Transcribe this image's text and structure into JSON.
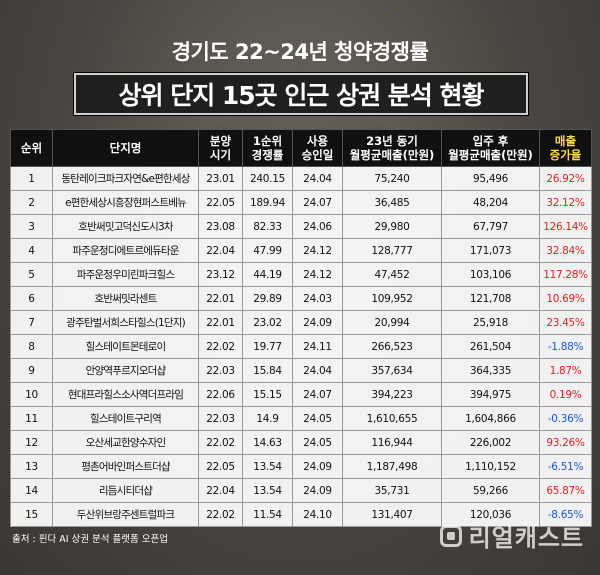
{
  "subtitle": "경기도 22~24년 청약경쟁률",
  "title": "상위 단지 15곳 인근 상권 분석 현황",
  "table": {
    "headers": [
      [
        "순위"
      ],
      [
        "단지명"
      ],
      [
        "분양",
        "시기"
      ],
      [
        "1순위",
        "경쟁률"
      ],
      [
        "사용",
        "승인일"
      ],
      [
        "23년 동기",
        "월평균매출(만원)"
      ],
      [
        "입주 후",
        "월평균매출(만원)"
      ],
      [
        "매출",
        "증가율"
      ]
    ],
    "rows": [
      {
        "rank": "1",
        "name": "동탄레이크파크자연&e편한세상",
        "sale": "23.01",
        "ratio": "240.15",
        "approval": "24.04",
        "sales23": "75,240",
        "sales_after": "95,496",
        "growth": "26.92%",
        "dir": "pos"
      },
      {
        "rank": "2",
        "name": "e편한세상시흥장현퍼스트베뉴",
        "sale": "22.05",
        "ratio": "189.94",
        "approval": "24.07",
        "sales23": "36,485",
        "sales_after": "48,204",
        "growth": "32.12%",
        "dir": "pos"
      },
      {
        "rank": "3",
        "name": "호반써밋고덕신도시3차",
        "sale": "23.08",
        "ratio": "82.33",
        "approval": "24.06",
        "sales23": "29,980",
        "sales_after": "67,797",
        "growth": "126.14%",
        "dir": "pos"
      },
      {
        "rank": "4",
        "name": "파주운정디에트르에듀타운",
        "sale": "22.04",
        "ratio": "47.99",
        "approval": "24.12",
        "sales23": "128,777",
        "sales_after": "171,073",
        "growth": "32.84%",
        "dir": "pos"
      },
      {
        "rank": "5",
        "name": "파주운정우미린파크힐스",
        "sale": "23.12",
        "ratio": "44.19",
        "approval": "24.12",
        "sales23": "47,452",
        "sales_after": "103,106",
        "growth": "117.28%",
        "dir": "pos"
      },
      {
        "rank": "6",
        "name": "호반써밋라센트",
        "sale": "22.01",
        "ratio": "29.89",
        "approval": "24.03",
        "sales23": "109,952",
        "sales_after": "121,708",
        "growth": "10.69%",
        "dir": "pos"
      },
      {
        "rank": "7",
        "name": "광주탄벌서희스타힐스(1단지)",
        "sale": "22.01",
        "ratio": "23.02",
        "approval": "24.09",
        "sales23": "20,994",
        "sales_after": "25,918",
        "growth": "23.45%",
        "dir": "pos"
      },
      {
        "rank": "8",
        "name": "힐스테이트몬테로이",
        "sale": "22.02",
        "ratio": "19.77",
        "approval": "24.11",
        "sales23": "266,523",
        "sales_after": "261,504",
        "growth": "-1.88%",
        "dir": "neg"
      },
      {
        "rank": "9",
        "name": "안양역푸르지오더샵",
        "sale": "22.03",
        "ratio": "15.84",
        "approval": "24.04",
        "sales23": "357,634",
        "sales_after": "364,335",
        "growth": "1.87%",
        "dir": "pos"
      },
      {
        "rank": "10",
        "name": "현대프라힐스소사역더프라임",
        "sale": "22.06",
        "ratio": "15.15",
        "approval": "24.07",
        "sales23": "394,223",
        "sales_after": "394,975",
        "growth": "0.19%",
        "dir": "pos"
      },
      {
        "rank": "11",
        "name": "힐스테이트구리역",
        "sale": "22.03",
        "ratio": "14.9",
        "approval": "24.05",
        "sales23": "1,610,655",
        "sales_after": "1,604,866",
        "growth": "-0.36%",
        "dir": "neg"
      },
      {
        "rank": "12",
        "name": "오산세교한양수자인",
        "sale": "22.02",
        "ratio": "14.63",
        "approval": "24.05",
        "sales23": "116,944",
        "sales_after": "226,002",
        "growth": "93.26%",
        "dir": "pos"
      },
      {
        "rank": "13",
        "name": "평촌어바인퍼스트더샵",
        "sale": "22.05",
        "ratio": "13.54",
        "approval": "24.09",
        "sales23": "1,187,498",
        "sales_after": "1,110,152",
        "growth": "-6.51%",
        "dir": "neg"
      },
      {
        "rank": "14",
        "name": "리듬시티더샵",
        "sale": "22.04",
        "ratio": "13.54",
        "approval": "24.09",
        "sales23": "35,731",
        "sales_after": "59,266",
        "growth": "65.87%",
        "dir": "pos"
      },
      {
        "rank": "15",
        "name": "두산위브랑주센트럴파크",
        "sale": "22.02",
        "ratio": "11.54",
        "approval": "24.10",
        "sales23": "131,407",
        "sales_after": "120,036",
        "growth": "-8.65%",
        "dir": "neg"
      }
    ]
  },
  "source": "출처 : 핀다 AI 상권 분석 플랫폼 오픈업",
  "logo": {
    "text": "리얼캐스트",
    "icon": "realcast-logo-icon"
  },
  "colors": {
    "increase": "#e02222",
    "decrease": "#1a57d6",
    "highlight_header": "#ffd84d"
  }
}
